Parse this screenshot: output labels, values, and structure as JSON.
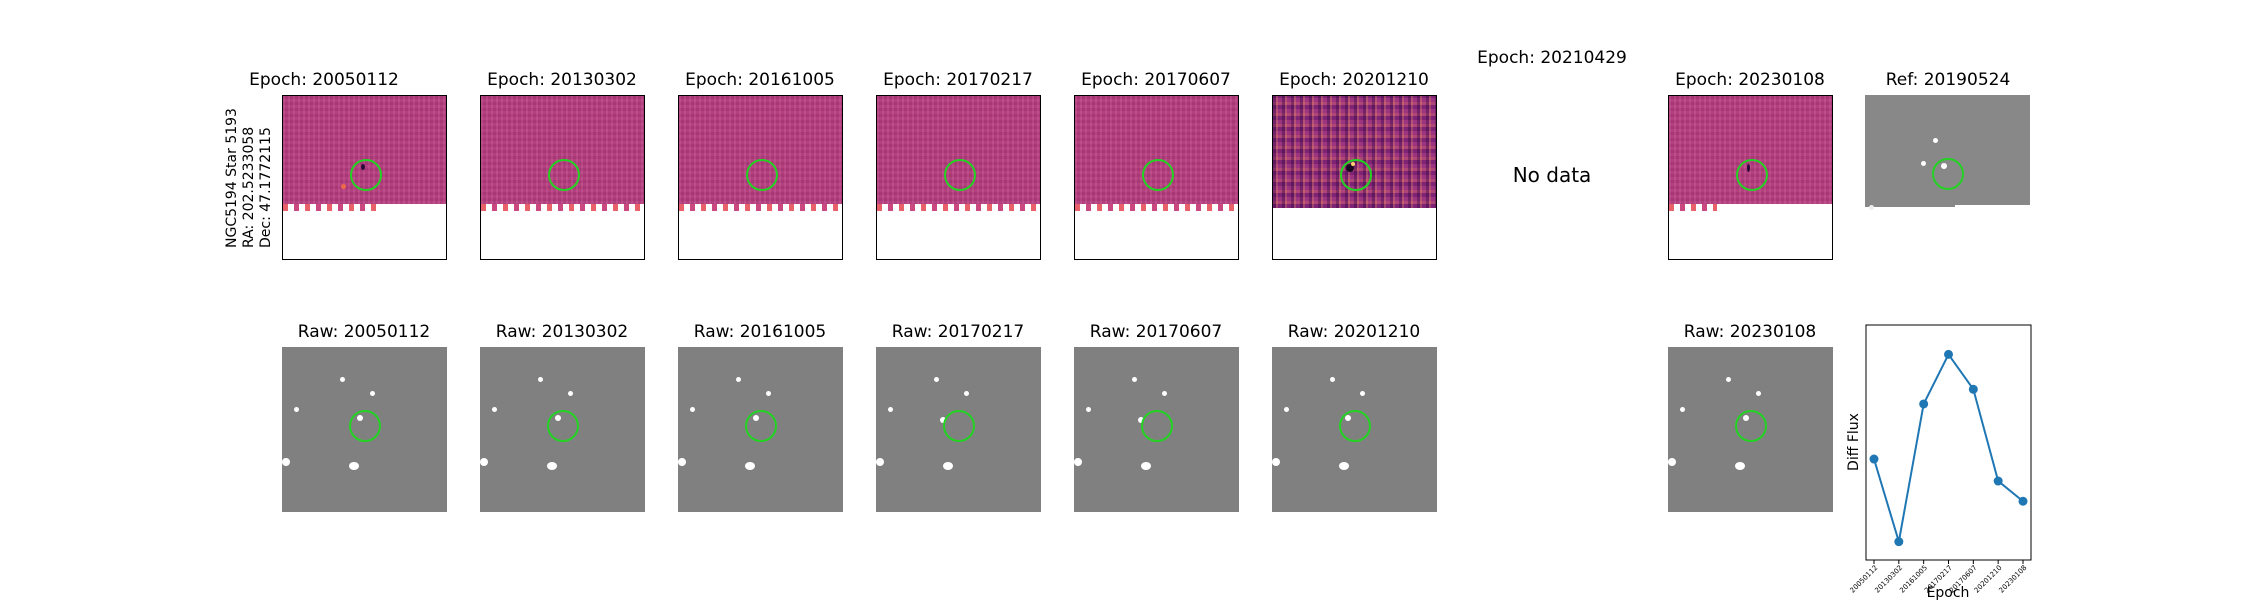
{
  "side_label": {
    "line1": "NGC5194 Star 5193",
    "line2": "RA: 202.5233058",
    "line3": "Dec: 47.1772115"
  },
  "diff_titles": [
    "Epoch: 20050112",
    "Epoch: 20130302",
    "Epoch: 20161005",
    "Epoch: 20170217",
    "Epoch: 20170607",
    "Epoch: 20201210",
    "Epoch: 20210429",
    "Epoch: 20230108"
  ],
  "no_data_text": "No data",
  "ref_title": "Ref: 20190524",
  "raw_titles": [
    "Raw: 20050112",
    "Raw: 20130302",
    "Raw: 20161005",
    "Raw: 20170217",
    "Raw: 20170607",
    "Raw: 20201210",
    "Raw: 20230108"
  ],
  "colors": {
    "marker_circle": "#22d322",
    "line": "#1f77b4",
    "diff_base": "#b83c80",
    "raw_base": "#808080"
  },
  "chart_data": {
    "type": "line",
    "xlabel": "Epoch",
    "ylabel": "Diff Flux",
    "categories": [
      "20050112",
      "20130302",
      "20161005",
      "20170217",
      "20170607",
      "20201210",
      "20230108"
    ],
    "values": [
      0.45,
      0.0,
      0.75,
      1.02,
      0.83,
      0.33,
      0.22
    ],
    "ylim": [
      -0.1,
      1.18
    ],
    "grid": false,
    "y_ticks_shown": false
  }
}
